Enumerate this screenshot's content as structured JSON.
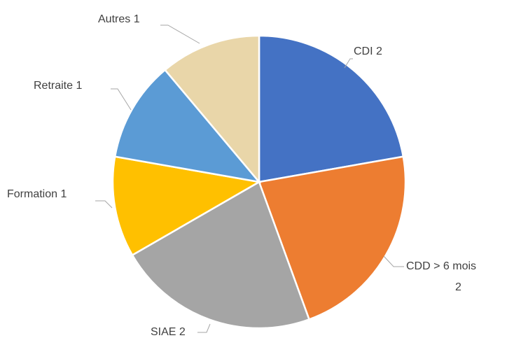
{
  "chart_data": {
    "type": "pie",
    "categories": [
      "CDI",
      "CDD > 6 mois",
      "SIAE",
      "Formation",
      "Retraite",
      "Autres"
    ],
    "values": [
      2,
      2,
      2,
      1,
      1,
      1
    ],
    "colors": [
      "#4472c4",
      "#ed7d31",
      "#a5a5a5",
      "#ffc000",
      "#5b9bd5",
      "#e9d6a9"
    ]
  }
}
